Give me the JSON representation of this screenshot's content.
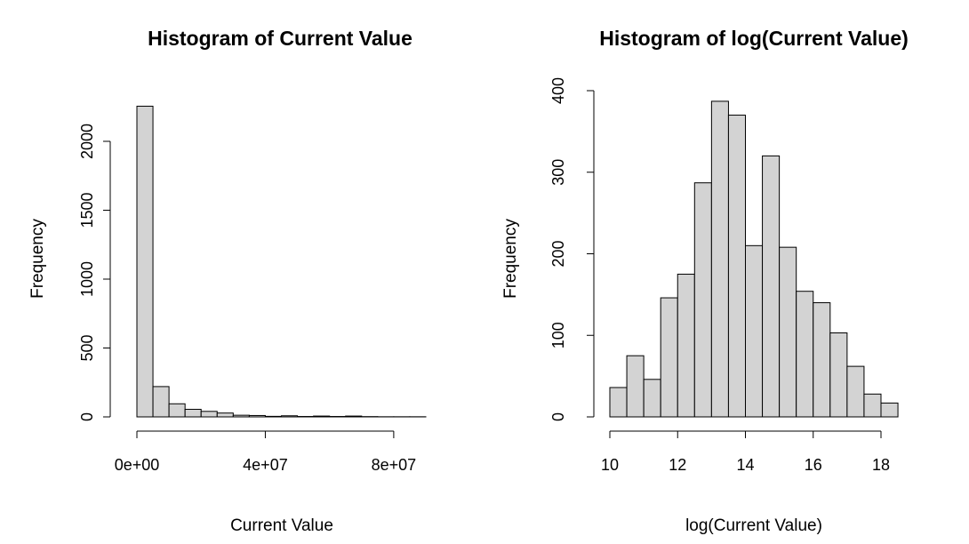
{
  "chart_data": [
    {
      "type": "bar",
      "title": "Histogram of Current Value",
      "xlabel": "Current Value",
      "ylabel": "Frequency",
      "xlim": [
        0,
        90000000
      ],
      "ylim": [
        0,
        2250
      ],
      "x_ticks": [
        0,
        40000000,
        80000000
      ],
      "x_tick_labels": [
        "0e+00",
        "4e+07",
        "8e+07"
      ],
      "y_ticks": [
        0,
        500,
        1000,
        1500,
        2000
      ],
      "y_tick_labels": [
        "0",
        "500",
        "1000",
        "1500",
        "2000"
      ],
      "bins": [
        {
          "from": 0,
          "to": 5000000,
          "count": 2255
        },
        {
          "from": 5000000,
          "to": 10000000,
          "count": 220
        },
        {
          "from": 10000000,
          "to": 15000000,
          "count": 95
        },
        {
          "from": 15000000,
          "to": 20000000,
          "count": 55
        },
        {
          "from": 20000000,
          "to": 25000000,
          "count": 40
        },
        {
          "from": 25000000,
          "to": 30000000,
          "count": 28
        },
        {
          "from": 30000000,
          "to": 35000000,
          "count": 12
        },
        {
          "from": 35000000,
          "to": 40000000,
          "count": 10
        },
        {
          "from": 40000000,
          "to": 45000000,
          "count": 4
        },
        {
          "from": 45000000,
          "to": 50000000,
          "count": 8
        },
        {
          "from": 50000000,
          "to": 55000000,
          "count": 3
        },
        {
          "from": 55000000,
          "to": 60000000,
          "count": 6
        },
        {
          "from": 60000000,
          "to": 65000000,
          "count": 3
        },
        {
          "from": 65000000,
          "to": 70000000,
          "count": 6
        },
        {
          "from": 70000000,
          "to": 75000000,
          "count": 2
        },
        {
          "from": 75000000,
          "to": 80000000,
          "count": 1
        },
        {
          "from": 80000000,
          "to": 85000000,
          "count": 1
        },
        {
          "from": 85000000,
          "to": 90000000,
          "count": 1
        }
      ]
    },
    {
      "type": "bar",
      "title": "Histogram of log(Current Value)",
      "xlabel": "log(Current Value)",
      "ylabel": "Frequency",
      "xlim": [
        10,
        18.5
      ],
      "ylim": [
        0,
        400
      ],
      "x_ticks": [
        10,
        12,
        14,
        16,
        18
      ],
      "x_tick_labels": [
        "10",
        "12",
        "14",
        "16",
        "18"
      ],
      "y_ticks": [
        0,
        100,
        200,
        300,
        400
      ],
      "y_tick_labels": [
        "0",
        "100",
        "200",
        "300",
        "400"
      ],
      "bins": [
        {
          "from": 10.0,
          "to": 10.5,
          "count": 36
        },
        {
          "from": 10.5,
          "to": 11.0,
          "count": 75
        },
        {
          "from": 11.0,
          "to": 11.5,
          "count": 46
        },
        {
          "from": 11.5,
          "to": 12.0,
          "count": 146
        },
        {
          "from": 12.0,
          "to": 12.5,
          "count": 175
        },
        {
          "from": 12.5,
          "to": 13.0,
          "count": 287
        },
        {
          "from": 13.0,
          "to": 13.5,
          "count": 387
        },
        {
          "from": 13.5,
          "to": 14.0,
          "count": 370
        },
        {
          "from": 14.0,
          "to": 14.5,
          "count": 210
        },
        {
          "from": 14.5,
          "to": 15.0,
          "count": 320
        },
        {
          "from": 15.0,
          "to": 15.5,
          "count": 208
        },
        {
          "from": 15.5,
          "to": 16.0,
          "count": 154
        },
        {
          "from": 16.0,
          "to": 16.5,
          "count": 140
        },
        {
          "from": 16.5,
          "to": 17.0,
          "count": 103
        },
        {
          "from": 17.0,
          "to": 17.5,
          "count": 62
        },
        {
          "from": 17.5,
          "to": 18.0,
          "count": 28
        },
        {
          "from": 18.0,
          "to": 18.5,
          "count": 17
        }
      ]
    }
  ]
}
